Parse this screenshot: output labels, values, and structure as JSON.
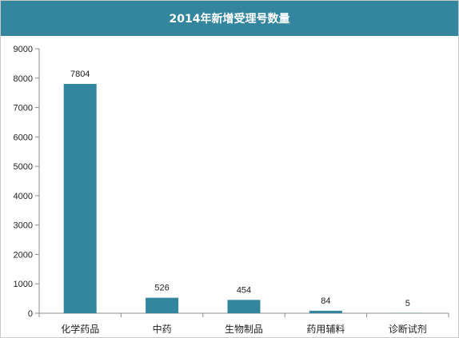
{
  "chart_data": {
    "type": "bar",
    "title": "2014年新增受理号数量",
    "categories": [
      "化学药品",
      "中药",
      "生物制品",
      "药用辅料",
      "诊断试剂"
    ],
    "values": [
      7804,
      526,
      454,
      84,
      5
    ],
    "data_labels": [
      "7804",
      "526",
      "454",
      "84",
      "5"
    ],
    "y_ticks": [
      "0",
      "1000",
      "2000",
      "3000",
      "4000",
      "5000",
      "6000",
      "7000",
      "8000",
      "9000"
    ],
    "ylim": [
      0,
      9000
    ],
    "xlabel": "",
    "ylabel": "",
    "grid": false,
    "legend": "none",
    "colors": {
      "bar": "#33869e",
      "title_bg": "#33869e",
      "axis": "#8c8c8c"
    }
  }
}
